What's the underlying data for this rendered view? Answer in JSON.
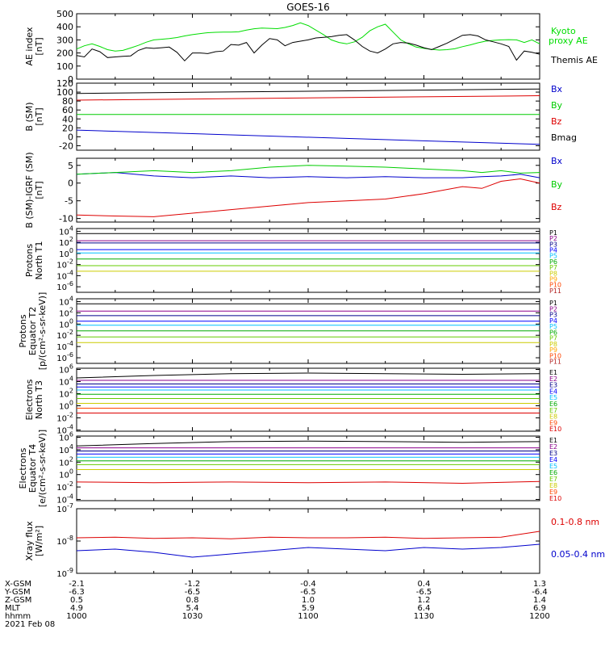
{
  "title": "GOES-16",
  "x_ticks": [
    "1000",
    "1030",
    "1100",
    "1130",
    "1200"
  ],
  "ephemeris": {
    "labels": [
      "X-GSM",
      "Y-GSM",
      "Z-GSM",
      "MLT",
      "hhmm",
      "2021 Feb 08"
    ],
    "columns": [
      [
        "-2.1",
        "-6.3",
        "0.5",
        "4.9",
        "1000"
      ],
      [
        "-1.2",
        "-6.5",
        "0.8",
        "5.4",
        "1030"
      ],
      [
        "-0.4",
        "-6.5",
        "1.0",
        "5.9",
        "1100"
      ],
      [
        "0.4",
        "-6.5",
        "1.2",
        "6.4",
        "1130"
      ],
      [
        "1.3",
        "-6.4",
        "1.4",
        "6.9",
        "1200"
      ]
    ]
  },
  "chart_data": [
    {
      "type": "line",
      "title": "",
      "ylabel": [
        "AE index",
        "[nT]"
      ],
      "ylim": [
        0,
        500
      ],
      "y_ticks": [
        "0",
        "100",
        "200",
        "300",
        "400",
        "500"
      ],
      "x": [
        0,
        2,
        4,
        6,
        8,
        10,
        12,
        14,
        16,
        18,
        20,
        22,
        24,
        26,
        28,
        30,
        32,
        34,
        36,
        38,
        40,
        42,
        44,
        46,
        48,
        50,
        52,
        54,
        56,
        58,
        60,
        62,
        64,
        66,
        68,
        70,
        72,
        74,
        76,
        78,
        80,
        82,
        84,
        86,
        88,
        90,
        92,
        94,
        96,
        98,
        100,
        102,
        104,
        106,
        108,
        110,
        112,
        114,
        116,
        118,
        120
      ],
      "series": [
        {
          "name": "Kyoto proxy AE",
          "color": "#00dd00",
          "values": [
            230,
            255,
            270,
            250,
            225,
            215,
            220,
            238,
            258,
            282,
            300,
            305,
            310,
            318,
            330,
            340,
            348,
            355,
            358,
            360,
            360,
            362,
            375,
            385,
            390,
            388,
            386,
            395,
            410,
            430,
            410,
            375,
            340,
            300,
            280,
            270,
            285,
            320,
            370,
            400,
            420,
            360,
            300,
            270,
            245,
            235,
            228,
            222,
            225,
            232,
            248,
            262,
            278,
            290,
            296,
            300,
            302,
            300,
            280,
            300,
            270
          ]
        },
        {
          "name": "Themis AE",
          "color": "#000000",
          "values": [
            180,
            170,
            230,
            210,
            165,
            170,
            175,
            178,
            220,
            240,
            235,
            240,
            245,
            205,
            140,
            200,
            200,
            195,
            210,
            215,
            265,
            260,
            280,
            200,
            260,
            310,
            300,
            255,
            280,
            290,
            300,
            315,
            320,
            325,
            335,
            340,
            300,
            250,
            215,
            200,
            230,
            270,
            280,
            275,
            260,
            240,
            225,
            250,
            275,
            305,
            335,
            340,
            330,
            300,
            285,
            270,
            250,
            145,
            215,
            205,
            190
          ]
        }
      ]
    },
    {
      "type": "line",
      "ylabel": [
        "B (SM)",
        "[nT]"
      ],
      "ylim": [
        -30,
        120
      ],
      "y_ticks": [
        "-20",
        "0",
        "20",
        "40",
        "60",
        "80",
        "100",
        "120"
      ],
      "x": [
        0,
        120
      ],
      "series": [
        {
          "name": "Bx",
          "color": "#0000cc",
          "values": [
            15,
            -17
          ]
        },
        {
          "name": "By",
          "color": "#00cc00",
          "values": [
            50,
            50
          ]
        },
        {
          "name": "Bz",
          "color": "#dd0000",
          "values": [
            82,
            92
          ]
        },
        {
          "name": "Bmag",
          "color": "#000000",
          "values": [
            97,
            107
          ]
        }
      ]
    },
    {
      "type": "line",
      "ylabel": [
        "B (SM)-IGRF (SM)",
        "[nT]"
      ],
      "ylim": [
        -11,
        7
      ],
      "y_ticks": [
        "-10",
        "-5",
        "0",
        "5"
      ],
      "x": [
        0,
        10,
        20,
        30,
        40,
        50,
        60,
        70,
        80,
        90,
        100,
        105,
        110,
        115,
        120
      ],
      "series": [
        {
          "name": "Bx",
          "color": "#0000cc",
          "values": [
            2.5,
            3.0,
            2.0,
            1.5,
            2.0,
            1.5,
            1.8,
            1.5,
            1.8,
            1.5,
            1.5,
            1.8,
            2.0,
            2.5,
            1.5
          ]
        },
        {
          "name": "By",
          "color": "#00cc00",
          "values": [
            2.5,
            3.0,
            3.5,
            3.0,
            3.5,
            4.5,
            5.0,
            4.8,
            4.5,
            4.0,
            3.5,
            3.0,
            3.5,
            2.8,
            3.0
          ]
        },
        {
          "name": "Bz",
          "color": "#dd0000",
          "values": [
            -9,
            -9.3,
            -9.5,
            -8.5,
            -7.5,
            -6.5,
            -5.5,
            -5.0,
            -4.5,
            -3.0,
            -1.0,
            -1.5,
            0.5,
            1.2,
            0.0
          ]
        }
      ]
    },
    {
      "type": "line",
      "ylabel": [
        "Protons",
        "North T1"
      ],
      "y_log": true,
      "ylim_exp": [
        -7,
        4.5
      ],
      "y_ticks": [
        "10^4",
        "10^2",
        "10^0",
        "10^-2",
        "10^-4",
        "10^-6"
      ],
      "x": [
        0,
        120
      ],
      "series": [
        {
          "name": "P1",
          "color": "#000000",
          "values": [
            3.6,
            3.6
          ]
        },
        {
          "name": "P2",
          "color": "#8b008b",
          "values": [
            2.3,
            2.3
          ]
        },
        {
          "name": "P3",
          "color": "#00008b",
          "values": [
            1.9,
            1.9
          ]
        },
        {
          "name": "P4",
          "color": "#0000ff",
          "values": [
            0.7,
            0.7
          ]
        },
        {
          "name": "P5",
          "color": "#00bfff",
          "values": [
            0.1,
            0.1
          ]
        },
        {
          "name": "P6",
          "color": "#00aa00",
          "values": [
            -1.0,
            -1.0
          ]
        },
        {
          "name": "P7",
          "color": "#66cc00",
          "values": [
            -2.2,
            -2.2
          ]
        },
        {
          "name": "P8",
          "color": "#cccc00",
          "values": [
            -3.2,
            -3.2
          ]
        },
        {
          "name": "P9",
          "color": "#ffa500",
          "values": [
            null,
            null
          ]
        },
        {
          "name": "P10",
          "color": "#ff4500",
          "values": [
            null,
            null
          ]
        },
        {
          "name": "P11",
          "color": "#b22222",
          "values": [
            null,
            null
          ]
        }
      ]
    },
    {
      "type": "line",
      "ylabel": [
        "Protons",
        "Equator T2",
        "[p/(cm²-s-sr-keV)]"
      ],
      "y_log": true,
      "ylim_exp": [
        -7,
        4.5
      ],
      "y_ticks": [
        "10^4",
        "10^2",
        "10^0",
        "10^-2",
        "10^-4",
        "10^-6"
      ],
      "x": [
        0,
        120
      ],
      "series": [
        {
          "name": "P1",
          "color": "#000000",
          "values": [
            3.6,
            3.6
          ]
        },
        {
          "name": "P2",
          "color": "#8b008b",
          "values": [
            2.3,
            2.3
          ]
        },
        {
          "name": "P3",
          "color": "#00008b",
          "values": [
            1.5,
            1.5
          ]
        },
        {
          "name": "P4",
          "color": "#0000ff",
          "values": [
            0.5,
            0.5
          ]
        },
        {
          "name": "P5",
          "color": "#00bfff",
          "values": [
            -0.2,
            -0.2
          ]
        },
        {
          "name": "P6",
          "color": "#00aa00",
          "values": [
            -1.2,
            -1.2
          ]
        },
        {
          "name": "P7",
          "color": "#66cc00",
          "values": [
            -2.3,
            -2.3
          ]
        },
        {
          "name": "P8",
          "color": "#cccc00",
          "values": [
            -3.3,
            -3.3
          ]
        },
        {
          "name": "P9",
          "color": "#ffa500",
          "values": [
            null,
            null
          ]
        },
        {
          "name": "P10",
          "color": "#ff4500",
          "values": [
            null,
            null
          ]
        },
        {
          "name": "P11",
          "color": "#b22222",
          "values": [
            null,
            null
          ]
        }
      ]
    },
    {
      "type": "line",
      "ylabel": [
        "Electrons",
        "North T3"
      ],
      "y_log": true,
      "ylim_exp": [
        -4.2,
        6.2
      ],
      "y_ticks": [
        "10^6",
        "10^4",
        "10^2",
        "10^0",
        "10^-2",
        "10^-4"
      ],
      "x": [
        0,
        20,
        40,
        60,
        80,
        100,
        120
      ],
      "series": [
        {
          "name": "E1",
          "color": "#000000",
          "values": [
            4.6,
            5.0,
            5.3,
            5.4,
            5.3,
            5.2,
            5.3
          ]
        },
        {
          "name": "E2",
          "color": "#8b008b",
          "values": [
            4.2,
            4.2,
            4.2,
            4.2,
            4.2,
            4.2,
            4.2
          ]
        },
        {
          "name": "E3",
          "color": "#00008b",
          "values": [
            3.6,
            3.6,
            3.6,
            3.6,
            3.6,
            3.6,
            3.6
          ]
        },
        {
          "name": "E4",
          "color": "#0000ff",
          "values": [
            3.1,
            3.1,
            3.1,
            3.1,
            3.1,
            3.1,
            3.1
          ]
        },
        {
          "name": "E5",
          "color": "#00bfff",
          "values": [
            2.6,
            2.6,
            2.6,
            2.6,
            2.6,
            2.6,
            2.6
          ]
        },
        {
          "name": "E6",
          "color": "#00aa00",
          "values": [
            1.9,
            1.9,
            1.9,
            1.9,
            1.9,
            1.9,
            1.9
          ]
        },
        {
          "name": "E7",
          "color": "#66cc00",
          "values": [
            1.2,
            1.2,
            1.2,
            1.2,
            1.2,
            1.2,
            1.2
          ]
        },
        {
          "name": "E8",
          "color": "#cccc00",
          "values": [
            0.4,
            0.4,
            0.4,
            0.4,
            0.4,
            0.4,
            0.4
          ]
        },
        {
          "name": "E9",
          "color": "#ff4500",
          "values": [
            -0.4,
            -0.4,
            -0.4,
            -0.4,
            -0.4,
            -0.4,
            -0.4
          ]
        },
        {
          "name": "E10",
          "color": "#dd0000",
          "values": [
            -1.2,
            -1.2,
            -1.2,
            -1.2,
            -1.2,
            -1.2,
            -1.2
          ]
        }
      ]
    },
    {
      "type": "line",
      "ylabel": [
        "Electrons",
        "Equator T4",
        "[e/(cm²-s-sr-keV)]"
      ],
      "y_log": true,
      "ylim_exp": [
        -4.2,
        6.2
      ],
      "y_ticks": [
        "10^6",
        "10^4",
        "10^2",
        "10^0",
        "10^-2",
        "10^-4"
      ],
      "x": [
        0,
        20,
        40,
        60,
        80,
        100,
        120
      ],
      "series": [
        {
          "name": "E1",
          "color": "#000000",
          "values": [
            4.6,
            5.0,
            5.3,
            5.4,
            5.3,
            5.2,
            5.3
          ]
        },
        {
          "name": "E2",
          "color": "#8b008b",
          "values": [
            4.3,
            4.3,
            4.3,
            4.3,
            4.3,
            4.3,
            4.3
          ]
        },
        {
          "name": "E3",
          "color": "#00008b",
          "values": [
            3.8,
            3.8,
            3.8,
            3.8,
            3.8,
            3.8,
            3.8
          ]
        },
        {
          "name": "E4",
          "color": "#0000ff",
          "values": [
            3.3,
            3.3,
            3.3,
            3.3,
            3.3,
            3.3,
            3.3
          ]
        },
        {
          "name": "E5",
          "color": "#00bfff",
          "values": [
            2.8,
            2.8,
            2.8,
            2.8,
            2.8,
            2.8,
            2.8
          ]
        },
        {
          "name": "E6",
          "color": "#00aa00",
          "values": [
            2.2,
            2.2,
            2.2,
            2.2,
            2.2,
            2.2,
            2.2
          ]
        },
        {
          "name": "E7",
          "color": "#66cc00",
          "values": [
            1.6,
            1.6,
            1.6,
            1.6,
            1.6,
            1.6,
            1.6
          ]
        },
        {
          "name": "E8",
          "color": "#cccc00",
          "values": [
            0.8,
            0.8,
            0.8,
            0.8,
            0.8,
            0.8,
            0.8
          ]
        },
        {
          "name": "E9",
          "color": "#ff4500",
          "values": [
            null,
            null,
            null,
            null,
            null,
            null,
            null
          ]
        },
        {
          "name": "E10",
          "color": "#dd0000",
          "values": [
            -1.2,
            -1.3,
            -1.2,
            -1.3,
            -1.2,
            -1.4,
            -1.1
          ]
        }
      ]
    },
    {
      "type": "line",
      "ylabel": [
        "Xray flux",
        "[W/m²]"
      ],
      "y_log": true,
      "ylim_exp": [
        -9,
        -7
      ],
      "y_ticks": [
        "10^-7",
        "10^-8",
        "10^-9"
      ],
      "x": [
        0,
        10,
        20,
        30,
        40,
        50,
        60,
        70,
        80,
        90,
        100,
        110,
        120
      ],
      "series": [
        {
          "name": "0.1-0.8 nm",
          "color": "#dd0000",
          "values": [
            -7.9,
            -7.88,
            -7.92,
            -7.9,
            -7.93,
            -7.88,
            -7.9,
            -7.9,
            -7.88,
            -7.92,
            -7.9,
            -7.88,
            -7.7
          ]
        },
        {
          "name": "0.05-0.4 nm",
          "color": "#0000cc",
          "values": [
            -8.3,
            -8.25,
            -8.35,
            -8.5,
            -8.4,
            -8.3,
            -8.2,
            -8.25,
            -8.3,
            -8.2,
            -8.25,
            -8.2,
            -8.1
          ]
        }
      ]
    }
  ]
}
